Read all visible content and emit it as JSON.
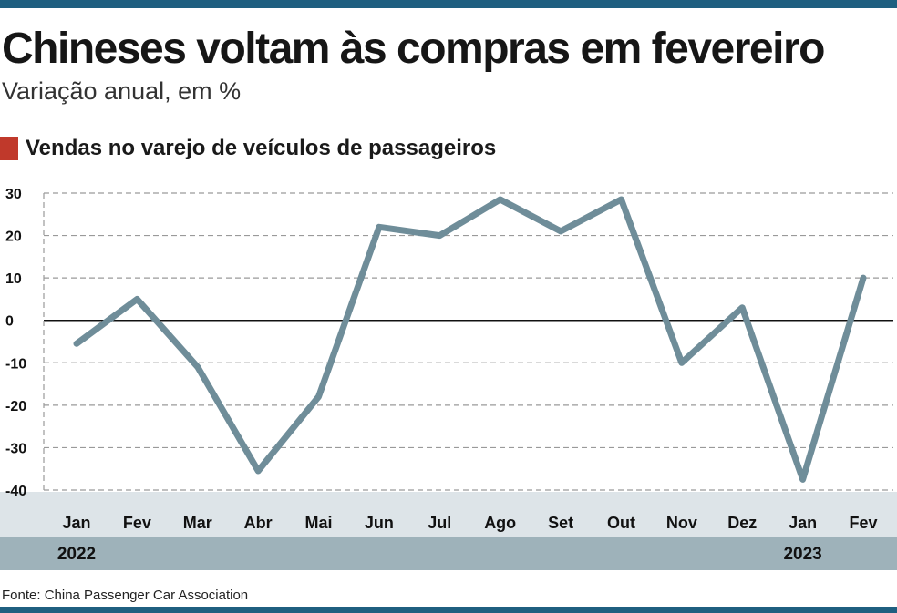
{
  "title": "Chineses voltam às compras em fevereiro",
  "subtitle": "Variação anual, em %",
  "source": "Fonte: China Passenger Car Association",
  "colors": {
    "accent": "#1f5f80",
    "legend_swatch": "#c0392b",
    "line": "#6f8d99",
    "month_band": "#dde4e8",
    "year_band": "#9eb2ba",
    "grid": "#9a9a9a"
  },
  "chart_data": {
    "type": "line",
    "title": "Vendas no varejo de veículos de passageiros",
    "xlabel": "",
    "ylabel": "",
    "categories": [
      "Jan",
      "Fev",
      "Mar",
      "Abr",
      "Mai",
      "Jun",
      "Jul",
      "Ago",
      "Set",
      "Out",
      "Nov",
      "Dez",
      "Jan",
      "Fev"
    ],
    "year_labels": [
      {
        "label": "2022",
        "category_index": 0
      },
      {
        "label": "2023",
        "category_index": 12
      }
    ],
    "series": [
      {
        "name": "Vendas no varejo de veículos de passageiros",
        "values": [
          -5.5,
          5,
          -11,
          -35.5,
          -18,
          22,
          20,
          28.5,
          21,
          28.5,
          -10,
          3,
          -37.5,
          10
        ]
      }
    ],
    "ylim": [
      -40,
      30
    ],
    "yticks": [
      30,
      20,
      10,
      0,
      -10,
      -20,
      -30,
      -40
    ],
    "grid": true,
    "zero_line": true
  }
}
